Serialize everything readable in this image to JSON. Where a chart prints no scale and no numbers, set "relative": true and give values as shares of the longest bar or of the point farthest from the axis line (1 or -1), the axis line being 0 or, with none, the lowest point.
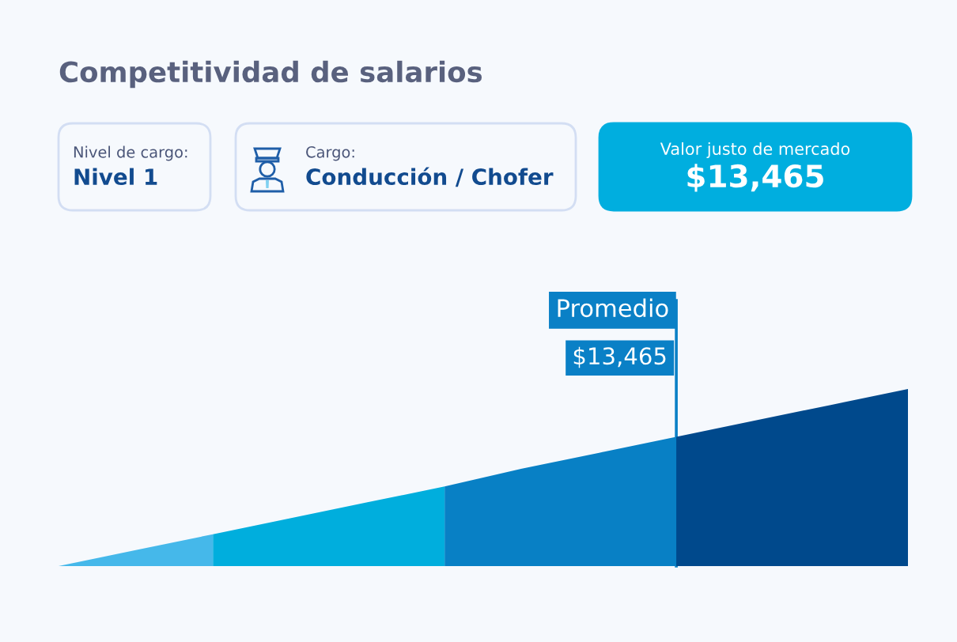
{
  "chart_data": {
    "type": "area",
    "title": "Competitividad de salarios",
    "categories": [
      null,
      null,
      null,
      null,
      null,
      null,
      null,
      null,
      null,
      null,
      null,
      null
    ],
    "relative": true,
    "series": [
      {
        "color": "#45b8ea",
        "values": [
          0,
          0.09,
          0.18,
          null,
          null,
          null,
          null,
          null,
          null,
          null,
          null,
          null
        ]
      },
      {
        "color": "#00aedd",
        "values": [
          null,
          null,
          0.18,
          0.27,
          0.36,
          0.45,
          null,
          null,
          null,
          null,
          null,
          null
        ]
      },
      {
        "color": "#0880c5",
        "values": [
          null,
          null,
          null,
          null,
          null,
          0.45,
          0.55,
          0.64,
          0.73,
          null,
          null,
          null
        ]
      },
      {
        "color": "#00498c",
        "values": [
          null,
          null,
          null,
          null,
          null,
          null,
          null,
          null,
          0.73,
          0.82,
          0.91,
          1
        ]
      }
    ],
    "annotations": [
      "Nivel de cargo:",
      "Nivel 1",
      "Cargo:",
      "Conducción / Chofer",
      "Valor justo de mercado",
      "$13,465",
      "Promedio",
      "$13,465"
    ]
  }
}
